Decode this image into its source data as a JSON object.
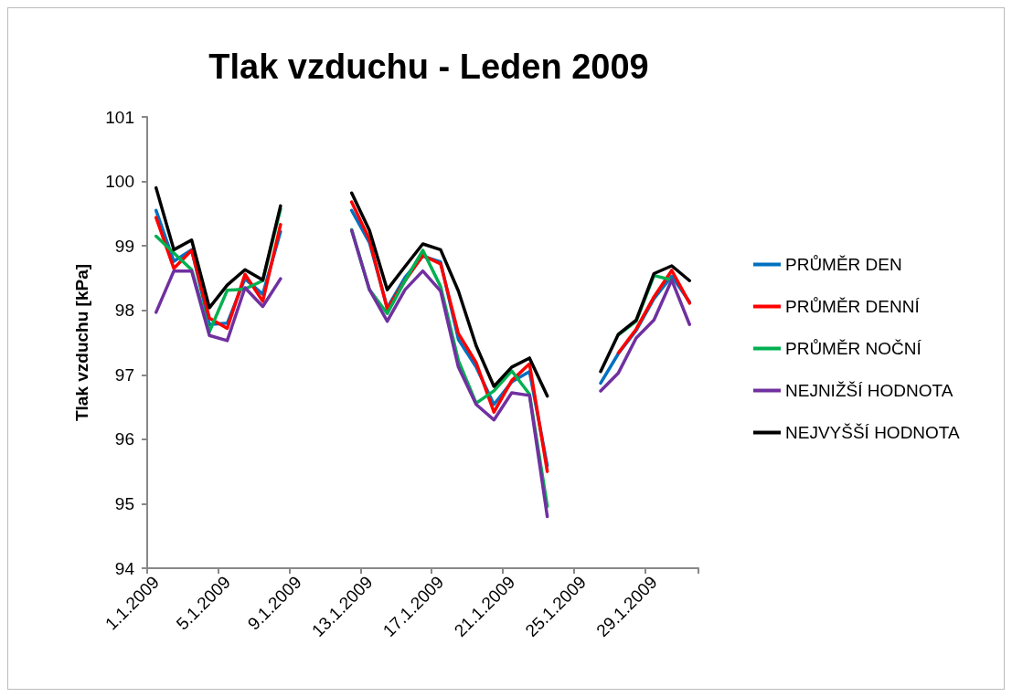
{
  "chart_data": {
    "type": "line",
    "title": "Tlak vzduchu - Leden 2009",
    "ylabel": "Tlak vzduchu [kPa]",
    "categories": [
      "1.1.2009",
      null,
      null,
      null,
      "5.1.2009",
      null,
      null,
      null,
      "9.1.2009",
      null,
      null,
      null,
      "13.1.2009",
      null,
      null,
      null,
      "17.1.2009",
      null,
      null,
      null,
      "21.1.2009",
      null,
      null,
      null,
      "25.1.2009",
      null,
      null,
      null,
      "29.1.2009",
      null,
      null
    ],
    "series": [
      {
        "name": "PRŮMĚR DEN",
        "color": "#0070c0",
        "values": [
          99.55,
          98.76,
          98.94,
          97.78,
          97.8,
          98.49,
          98.25,
          99.22,
          null,
          null,
          null,
          99.55,
          99.05,
          98.04,
          98.51,
          98.84,
          98.75,
          97.55,
          97.12,
          96.54,
          96.89,
          97.05,
          95.59,
          null,
          null,
          96.87,
          97.33,
          97.69,
          98.18,
          98.53,
          98.13
        ]
      },
      {
        "name": "PRŮMĚR DENNÍ",
        "color": "#ff0000",
        "values": [
          99.44,
          98.65,
          98.93,
          97.88,
          97.72,
          98.56,
          98.14,
          99.33,
          null,
          null,
          null,
          99.68,
          99.1,
          98.02,
          98.46,
          98.85,
          98.72,
          97.64,
          97.19,
          96.42,
          96.91,
          97.17,
          95.5,
          null,
          null,
          null,
          97.34,
          97.71,
          98.21,
          98.62,
          98.11
        ]
      },
      {
        "name": "PRŮMĚR NOČNÍ",
        "color": "#00b050",
        "values": [
          99.15,
          98.89,
          98.63,
          97.67,
          98.31,
          98.33,
          98.46,
          99.57,
          null,
          null,
          null,
          99.25,
          98.32,
          97.95,
          98.46,
          98.93,
          98.37,
          97.22,
          96.56,
          96.75,
          97.06,
          96.7,
          94.96,
          null,
          null,
          null,
          97.62,
          97.83,
          98.54,
          98.47,
          null
        ]
      },
      {
        "name": "NEJNIŽŠÍ HODNOTA",
        "color": "#7030a0",
        "values": [
          97.97,
          98.61,
          98.61,
          97.61,
          97.53,
          98.35,
          98.06,
          98.49,
          null,
          null,
          null,
          99.24,
          98.32,
          97.83,
          98.32,
          98.61,
          98.3,
          97.12,
          96.54,
          96.3,
          96.72,
          96.68,
          94.8,
          null,
          null,
          96.75,
          97.03,
          97.57,
          97.85,
          98.47,
          97.78
        ]
      },
      {
        "name": "NEJVYŠŠÍ HODNOTA",
        "color": "#000000",
        "values": [
          99.9,
          98.94,
          99.09,
          98.04,
          98.39,
          98.63,
          98.47,
          99.62,
          null,
          null,
          null,
          99.82,
          99.24,
          98.32,
          98.68,
          99.03,
          98.94,
          98.3,
          97.45,
          96.82,
          97.12,
          97.26,
          96.67,
          null,
          null,
          97.05,
          97.63,
          97.85,
          98.57,
          98.69,
          98.46
        ]
      }
    ],
    "ylim": [
      94,
      101
    ],
    "yticks": [
      94,
      95,
      96,
      97,
      98,
      99,
      100,
      101
    ],
    "legend": "right",
    "marker": "none",
    "line_style": "solid"
  }
}
